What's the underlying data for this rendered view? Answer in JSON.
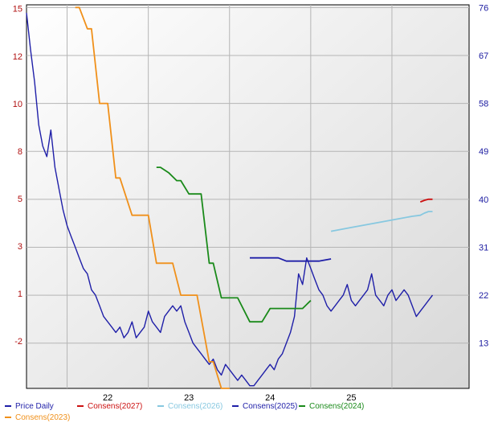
{
  "chart_data": {
    "type": "line",
    "title": "",
    "xlabel": "",
    "x_ticks": [
      "22",
      "23",
      "24",
      "25"
    ],
    "x_range": [
      2021.0,
      2026.45
    ],
    "left_axis": {
      "ticks": [
        "15",
        "12",
        "10",
        "8",
        "5",
        "3",
        "1",
        "-2"
      ],
      "tick_values": [
        15,
        12.5,
        10,
        7.5,
        5,
        2.5,
        0,
        -2.5
      ],
      "range": [
        -5.0,
        15.2
      ],
      "color": "#b01010"
    },
    "right_axis": {
      "ticks": [
        "76",
        "67",
        "58",
        "49",
        "40",
        "31",
        "22",
        "13"
      ],
      "tick_values": [
        76,
        67,
        58,
        49,
        40,
        31,
        22,
        13
      ],
      "range": [
        4.5,
        76.5
      ],
      "color": "#1a1aa0"
    },
    "grid": true,
    "legend_placement": "bottom",
    "series": [
      {
        "name": "Price Daily",
        "axis": "right",
        "color": "#1f1fa8",
        "x": [
          2021.0,
          2021.05,
          2021.1,
          2021.15,
          2021.2,
          2021.25,
          2021.3,
          2021.35,
          2021.4,
          2021.45,
          2021.5,
          2021.55,
          2021.6,
          2021.65,
          2021.7,
          2021.75,
          2021.8,
          2021.85,
          2021.9,
          2021.95,
          2022.0,
          2022.05,
          2022.1,
          2022.15,
          2022.2,
          2022.25,
          2022.3,
          2022.35,
          2022.4,
          2022.45,
          2022.5,
          2022.55,
          2022.6,
          2022.65,
          2022.7,
          2022.75,
          2022.8,
          2022.85,
          2022.9,
          2022.95,
          2023.0,
          2023.05,
          2023.1,
          2023.15,
          2023.2,
          2023.25,
          2023.3,
          2023.35,
          2023.4,
          2023.45,
          2023.5,
          2023.55,
          2023.6,
          2023.65,
          2023.7,
          2023.75,
          2023.8,
          2023.85,
          2023.9,
          2023.95,
          2024.0,
          2024.05,
          2024.1,
          2024.15,
          2024.2,
          2024.25,
          2024.3,
          2024.35,
          2024.4,
          2024.45,
          2024.5,
          2024.55,
          2024.6,
          2024.65,
          2024.7,
          2024.75,
          2024.8,
          2024.85,
          2024.9,
          2024.95,
          2025.0,
          2025.05,
          2025.1,
          2025.15,
          2025.2,
          2025.25,
          2025.3,
          2025.35,
          2025.4,
          2025.45,
          2025.5,
          2025.55,
          2025.6,
          2025.65,
          2025.7,
          2025.75,
          2025.8,
          2025.85,
          2025.9,
          2025.95,
          2026.0
        ],
        "values": [
          75,
          68,
          62,
          54,
          50,
          48,
          53,
          46,
          42,
          38,
          35,
          33,
          31,
          29,
          27,
          26,
          23,
          22,
          20,
          18,
          17,
          16,
          15,
          16,
          14,
          15,
          17,
          14,
          15,
          16,
          19,
          17,
          16,
          15,
          18,
          19,
          20,
          19,
          20,
          17,
          15,
          13,
          12,
          11,
          10,
          9,
          10,
          8,
          7,
          9,
          8,
          7,
          6,
          7,
          6,
          5,
          5,
          6,
          7,
          8,
          9,
          8,
          10,
          11,
          13,
          15,
          18,
          26,
          24,
          29,
          27,
          25,
          23,
          22,
          20,
          19,
          20,
          21,
          22,
          24,
          21,
          20,
          21,
          22,
          23,
          26,
          22,
          21,
          20,
          22,
          23,
          21,
          22,
          23,
          22,
          20,
          18,
          19,
          20,
          21,
          22
        ]
      },
      {
        "name": "Consens(2027)",
        "axis": "right",
        "color": "#cc1111",
        "x": [
          2025.85,
          2025.9,
          2025.95,
          2026.0
        ],
        "values": [
          39.5,
          39.8,
          40.0,
          40.0
        ]
      },
      {
        "name": "Consens(2026)",
        "axis": "right",
        "color": "#87c8e0",
        "x": [
          2024.75,
          2025.0,
          2025.25,
          2025.5,
          2025.75,
          2025.85,
          2025.9,
          2025.95,
          2026.0
        ],
        "values": [
          34.0,
          34.7,
          35.4,
          36.1,
          36.8,
          37.0,
          37.4,
          37.7,
          37.7
        ]
      },
      {
        "name": "Consens(2025)",
        "axis": "right",
        "color": "#1f1fa8",
        "x": [
          2023.75,
          2023.85,
          2023.95,
          2024.1,
          2024.2,
          2024.3,
          2024.45,
          2024.6,
          2024.75
        ],
        "values": [
          29.0,
          29.0,
          29.0,
          29.0,
          28.4,
          28.4,
          28.4,
          28.4,
          28.8
        ]
      },
      {
        "name": "Consens(2024)",
        "axis": "right",
        "color": "#1a8a1a",
        "x": [
          2022.6,
          2022.65,
          2022.75,
          2022.85,
          2022.9,
          2023.0,
          2023.05,
          2023.15,
          2023.25,
          2023.3,
          2023.4,
          2023.5,
          2023.6,
          2023.75,
          2023.9,
          2024.0,
          2024.1,
          2024.2,
          2024.3,
          2024.4,
          2024.5
        ],
        "values": [
          46.0,
          46.0,
          45.0,
          43.5,
          43.5,
          41.0,
          41.0,
          41.0,
          28.0,
          28.0,
          21.5,
          21.5,
          21.5,
          17.0,
          17.0,
          19.5,
          19.5,
          19.5,
          19.5,
          19.5,
          21.0
        ]
      },
      {
        "name": "Consens(2023)",
        "axis": "right",
        "color": "#f0901a",
        "x": [
          2021.6,
          2021.65,
          2021.75,
          2021.8,
          2021.9,
          2022.0,
          2022.1,
          2022.15,
          2022.3,
          2022.4,
          2022.5,
          2022.6,
          2022.8,
          2022.9,
          2023.0,
          2023.1,
          2023.25,
          2023.3,
          2023.4,
          2023.5
        ],
        "values": [
          76.0,
          76.0,
          72.0,
          72.0,
          58.0,
          58.0,
          44.0,
          44.0,
          37.0,
          37.0,
          37.0,
          28.0,
          28.0,
          22.0,
          22.0,
          22.0,
          9.5,
          9.5,
          4.5,
          4.5
        ]
      }
    ]
  },
  "legend": {
    "items": [
      {
        "label": "Price Daily",
        "color": "#1f1fa8"
      },
      {
        "label": "Consens(2027)",
        "color": "#cc1111"
      },
      {
        "label": "Consens(2026)",
        "color": "#87c8e0"
      },
      {
        "label": "Consens(2025)",
        "color": "#1f1fa8"
      },
      {
        "label": "Consens(2024)",
        "color": "#1a8a1a"
      },
      {
        "label": "Consens(2023)",
        "color": "#f0901a"
      }
    ]
  }
}
